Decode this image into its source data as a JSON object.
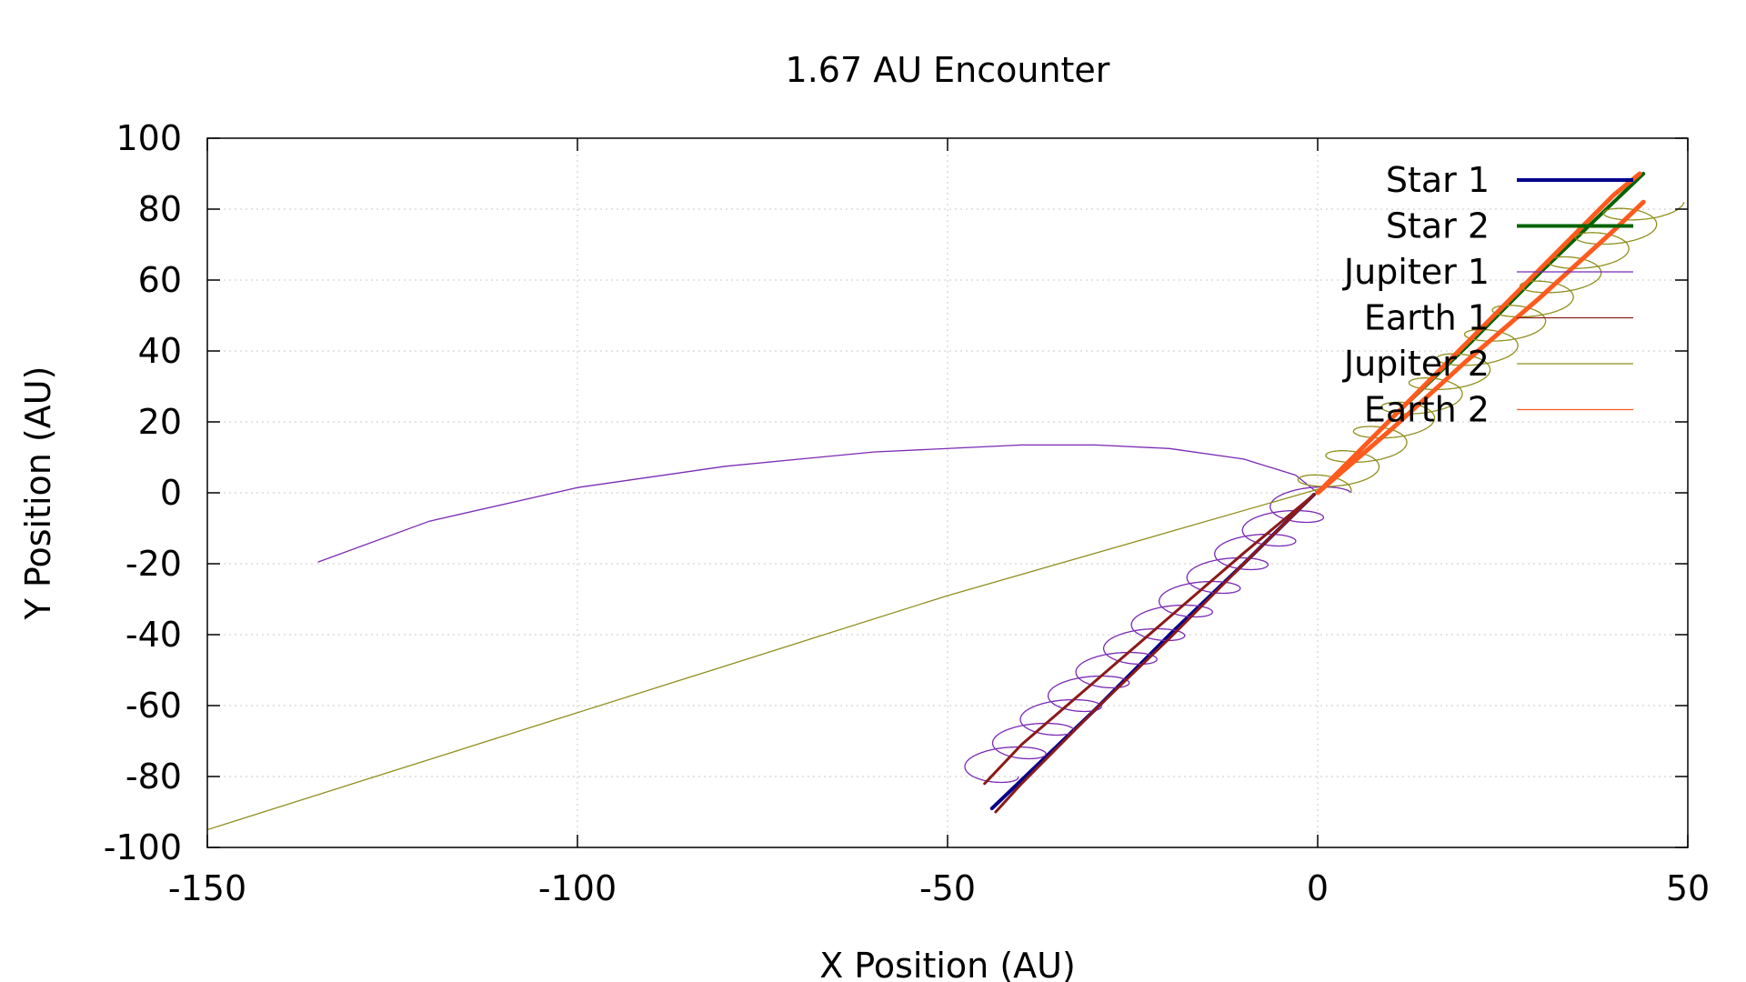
{
  "chart_data": {
    "type": "line",
    "title": "1.67 AU Encounter",
    "xlabel": "X Position (AU)",
    "ylabel": "Y Position (AU)",
    "xlim": [
      -150,
      50
    ],
    "ylim": [
      -100,
      100
    ],
    "xticks": [
      -150,
      -100,
      -50,
      0,
      50
    ],
    "yticks": [
      -100,
      -80,
      -60,
      -40,
      -20,
      0,
      20,
      40,
      60,
      80,
      100
    ],
    "grid": true,
    "legend_position": "top-right",
    "series": [
      {
        "name": "Star 1",
        "color": "#00008b",
        "linewidth": 4,
        "kind": "line",
        "x": [
          -0.5,
          -10,
          -20,
          -30,
          -40,
          -44
        ],
        "y": [
          -0.5,
          -20,
          -40,
          -61,
          -81,
          -89
        ]
      },
      {
        "name": "Star 2",
        "color": "#006400",
        "linewidth": 4,
        "kind": "line",
        "x": [
          0,
          10,
          20,
          30,
          40,
          44
        ],
        "y": [
          0,
          21,
          41,
          62,
          82,
          90
        ]
      },
      {
        "name": "Jupiter 1",
        "color": "#7a29b5",
        "linewidth": 1.3,
        "kind": "line",
        "x": [
          -135,
          -120,
          -100,
          -80,
          -60,
          -40,
          -30,
          -20,
          -10,
          -3,
          0
        ],
        "y": [
          -19.5,
          -8,
          1.5,
          7.5,
          11.5,
          13.5,
          13.5,
          12.5,
          9.5,
          5,
          0
        ]
      },
      {
        "name": "Jupiter 1",
        "color": "#7a29b5",
        "linewidth": 1.3,
        "kind": "loops",
        "x": [
          0,
          -45
        ],
        "y": [
          0,
          -80
        ],
        "loop_count": 12,
        "loop_radius": 4.5
      },
      {
        "name": "Earth 1",
        "color": "#8b1a1a",
        "linewidth": 3,
        "kind": "line",
        "x": [
          -0.5,
          -10,
          -20,
          -30,
          -40,
          -45
        ],
        "y": [
          -0.5,
          -17,
          -35,
          -53,
          -71,
          -82
        ]
      },
      {
        "name": "Earth 1",
        "color": "#8b1a1a",
        "linewidth": 3,
        "kind": "line",
        "x": [
          -0.5,
          -10,
          -20,
          -30,
          -40,
          -43.5
        ],
        "y": [
          -0.5,
          -20,
          -41,
          -61,
          -82,
          -90
        ]
      },
      {
        "name": "Jupiter 2",
        "color": "#8f8f1e",
        "linewidth": 1.3,
        "kind": "line",
        "x": [
          -150,
          -100,
          -50,
          -20,
          0
        ],
        "y": [
          -95,
          -62,
          -29,
          -11,
          1
        ]
      },
      {
        "name": "Jupiter 2",
        "color": "#8f8f1e",
        "linewidth": 1.3,
        "kind": "loops",
        "x": [
          0,
          45
        ],
        "y": [
          0,
          82
        ],
        "loop_count": 12,
        "loop_radius": 4.5
      },
      {
        "name": "Earth 2",
        "color": "#ff5a1e",
        "linewidth": 5,
        "kind": "line",
        "x": [
          0,
          10,
          20,
          30,
          40,
          43.5
        ],
        "y": [
          0,
          21,
          42,
          63,
          84,
          90
        ]
      },
      {
        "name": "Earth 2",
        "color": "#ff5a1e",
        "linewidth": 5,
        "kind": "line",
        "x": [
          0,
          10,
          20,
          30,
          40,
          44
        ],
        "y": [
          0,
          18,
          37,
          55,
          74,
          82
        ]
      }
    ],
    "legend": [
      {
        "name": "Star 1",
        "color": "#00008b",
        "linewidth": 4
      },
      {
        "name": "Star 2",
        "color": "#006400",
        "linewidth": 4
      },
      {
        "name": "Jupiter 1",
        "color": "#7a29b5",
        "linewidth": 1.3
      },
      {
        "name": "Earth 1",
        "color": "#8b1a1a",
        "linewidth": 1.3
      },
      {
        "name": "Jupiter 2",
        "color": "#8f8f1e",
        "linewidth": 1.3
      },
      {
        "name": "Earth 2",
        "color": "#ff5a1e",
        "linewidth": 1.3
      }
    ]
  }
}
